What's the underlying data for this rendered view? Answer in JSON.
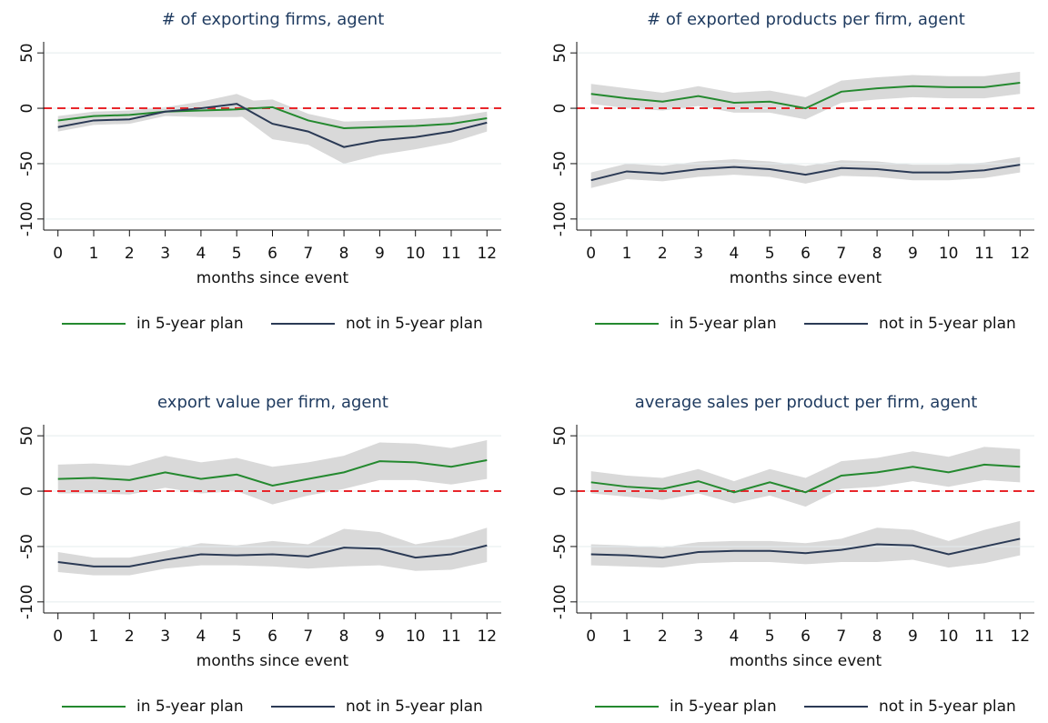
{
  "chart_data": [
    {
      "type": "line",
      "title": "# of exporting firms, agent",
      "xlabel": "months since event",
      "x": [
        0,
        1,
        2,
        3,
        4,
        5,
        6,
        7,
        8,
        9,
        10,
        11,
        12
      ],
      "xlim": [
        -0.4,
        12.4
      ],
      "xticks": [
        0,
        1,
        2,
        3,
        4,
        5,
        6,
        7,
        8,
        9,
        10,
        11,
        12
      ],
      "ylim": [
        -110,
        60
      ],
      "yticks": [
        50,
        0,
        -50,
        -100
      ],
      "grid": true,
      "yline": 0,
      "yline_color": "#e8262b",
      "band_color": "#d9d9d9",
      "series": [
        {
          "name": "in 5-year plan",
          "color": "#24892f",
          "values": [
            -11,
            -7,
            -6,
            -3,
            -2,
            -1,
            1,
            -11,
            -18,
            -17,
            -16,
            -14,
            -9
          ],
          "lower": [
            -15,
            -11,
            -10,
            -7,
            -8,
            -8,
            -6,
            -17,
            -24,
            -23,
            -22,
            -20,
            -15
          ],
          "upper": [
            -7,
            -3,
            -2,
            1,
            4,
            6,
            8,
            -5,
            -12,
            -11,
            -10,
            -8,
            -3
          ]
        },
        {
          "name": "not in 5-year plan",
          "color": "#2b3a55",
          "values": [
            -17,
            -11,
            -10,
            -3,
            0,
            4,
            -14,
            -21,
            -35,
            -29,
            -26,
            -21,
            -13
          ],
          "lower": [
            -21,
            -15,
            -14,
            -7,
            -6,
            -4,
            -28,
            -33,
            -50,
            -42,
            -37,
            -31,
            -21
          ],
          "upper": [
            -13,
            -7,
            -6,
            1,
            6,
            13,
            0,
            -9,
            -20,
            -16,
            -15,
            -11,
            -5
          ]
        }
      ]
    },
    {
      "type": "line",
      "title": "# of exported products per firm, agent",
      "xlabel": "months since event",
      "x": [
        0,
        1,
        2,
        3,
        4,
        5,
        6,
        7,
        8,
        9,
        10,
        11,
        12
      ],
      "xlim": [
        -0.4,
        12.4
      ],
      "xticks": [
        0,
        1,
        2,
        3,
        4,
        5,
        6,
        7,
        8,
        9,
        10,
        11,
        12
      ],
      "ylim": [
        -110,
        60
      ],
      "yticks": [
        50,
        0,
        -50,
        -100
      ],
      "grid": true,
      "yline": 0,
      "yline_color": "#e8262b",
      "band_color": "#d9d9d9",
      "series": [
        {
          "name": "in 5-year plan",
          "color": "#24892f",
          "values": [
            13,
            9,
            6,
            11,
            5,
            6,
            0,
            15,
            18,
            20,
            19,
            19,
            23
          ],
          "lower": [
            4,
            0,
            -2,
            2,
            -4,
            -4,
            -10,
            5,
            8,
            10,
            9,
            9,
            13
          ],
          "upper": [
            22,
            18,
            14,
            20,
            14,
            16,
            10,
            25,
            28,
            30,
            29,
            29,
            33
          ]
        },
        {
          "name": "not in 5-year plan",
          "color": "#2b3a55",
          "values": [
            -65,
            -57,
            -59,
            -55,
            -53,
            -55,
            -60,
            -54,
            -55,
            -58,
            -58,
            -56,
            -51
          ],
          "lower": [
            -72,
            -64,
            -66,
            -62,
            -60,
            -62,
            -68,
            -61,
            -62,
            -65,
            -65,
            -63,
            -58
          ],
          "upper": [
            -58,
            -50,
            -52,
            -48,
            -46,
            -48,
            -52,
            -47,
            -48,
            -51,
            -51,
            -49,
            -44
          ]
        }
      ]
    },
    {
      "type": "line",
      "title": "export value per firm, agent",
      "xlabel": "months since event",
      "x": [
        0,
        1,
        2,
        3,
        4,
        5,
        6,
        7,
        8,
        9,
        10,
        11,
        12
      ],
      "xlim": [
        -0.4,
        12.4
      ],
      "xticks": [
        0,
        1,
        2,
        3,
        4,
        5,
        6,
        7,
        8,
        9,
        10,
        11,
        12
      ],
      "ylim": [
        -110,
        60
      ],
      "yticks": [
        50,
        0,
        -50,
        -100
      ],
      "grid": true,
      "yline": 0,
      "yline_color": "#e8262b",
      "band_color": "#d9d9d9",
      "series": [
        {
          "name": "in 5-year plan",
          "color": "#24892f",
          "values": [
            11,
            12,
            10,
            17,
            11,
            15,
            5,
            11,
            17,
            27,
            26,
            22,
            28
          ],
          "lower": [
            -2,
            -2,
            -3,
            3,
            -2,
            0,
            -12,
            -4,
            2,
            10,
            10,
            6,
            11
          ],
          "upper": [
            24,
            25,
            23,
            32,
            26,
            30,
            22,
            26,
            32,
            44,
            43,
            39,
            46
          ]
        },
        {
          "name": "not in 5-year plan",
          "color": "#2b3a55",
          "values": [
            -64,
            -68,
            -68,
            -62,
            -57,
            -58,
            -57,
            -59,
            -51,
            -52,
            -60,
            -57,
            -49
          ],
          "lower": [
            -73,
            -76,
            -76,
            -70,
            -67,
            -67,
            -68,
            -70,
            -68,
            -67,
            -72,
            -71,
            -64
          ],
          "upper": [
            -55,
            -60,
            -60,
            -54,
            -47,
            -49,
            -45,
            -48,
            -34,
            -37,
            -48,
            -43,
            -33
          ]
        }
      ]
    },
    {
      "type": "line",
      "title": "average sales per product per firm, agent",
      "xlabel": "months since event",
      "x": [
        0,
        1,
        2,
        3,
        4,
        5,
        6,
        7,
        8,
        9,
        10,
        11,
        12
      ],
      "xlim": [
        -0.4,
        12.4
      ],
      "xticks": [
        0,
        1,
        2,
        3,
        4,
        5,
        6,
        7,
        8,
        9,
        10,
        11,
        12
      ],
      "ylim": [
        -110,
        60
      ],
      "yticks": [
        50,
        0,
        -50,
        -100
      ],
      "grid": true,
      "yline": 0,
      "yline_color": "#e8262b",
      "band_color": "#d9d9d9",
      "series": [
        {
          "name": "in 5-year plan",
          "color": "#24892f",
          "values": [
            8,
            4,
            2,
            9,
            -1,
            8,
            -1,
            14,
            17,
            22,
            17,
            24,
            22
          ],
          "lower": [
            -2,
            -5,
            -8,
            -2,
            -11,
            -4,
            -14,
            2,
            4,
            9,
            4,
            10,
            8
          ],
          "upper": [
            18,
            14,
            12,
            20,
            9,
            20,
            12,
            27,
            30,
            36,
            31,
            40,
            38
          ]
        },
        {
          "name": "not in 5-year plan",
          "color": "#2b3a55",
          "values": [
            -57,
            -58,
            -60,
            -55,
            -54,
            -54,
            -56,
            -53,
            -48,
            -49,
            -57,
            -50,
            -43
          ],
          "lower": [
            -67,
            -68,
            -69,
            -65,
            -64,
            -64,
            -66,
            -64,
            -64,
            -62,
            -69,
            -65,
            -58
          ],
          "upper": [
            -48,
            -49,
            -51,
            -46,
            -45,
            -45,
            -47,
            -43,
            -33,
            -35,
            -45,
            -35,
            -27
          ]
        }
      ]
    }
  ]
}
